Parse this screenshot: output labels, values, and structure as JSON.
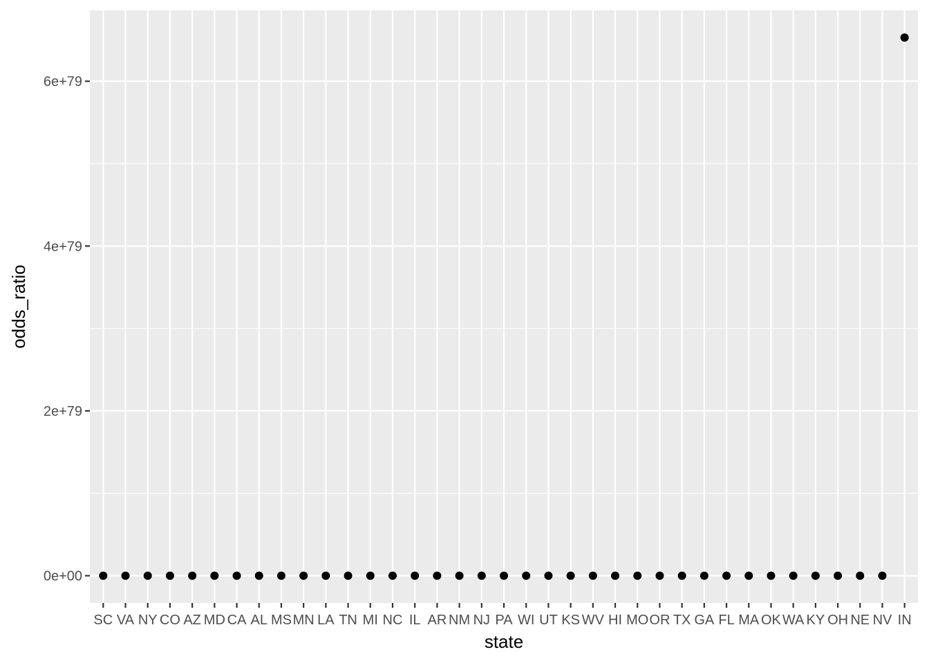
{
  "chart_data": {
    "type": "scatter",
    "xlabel": "state",
    "ylabel": "odds_ratio",
    "categories": [
      "SC",
      "VA",
      "NY",
      "CO",
      "AZ",
      "MD",
      "CA",
      "AL",
      "MS",
      "MN",
      "LA",
      "TN",
      "MI",
      "NC",
      "IL",
      "AR",
      "NM",
      "NJ",
      "PA",
      "WI",
      "UT",
      "KS",
      "WV",
      "HI",
      "MO",
      "OR",
      "TX",
      "GA",
      "FL",
      "MA",
      "OK",
      "WA",
      "KY",
      "OH",
      "NE",
      "NV",
      "IN"
    ],
    "values": [
      0,
      0,
      0,
      0,
      0,
      0,
      0,
      0,
      0,
      0,
      0,
      0,
      0,
      0,
      0,
      0,
      0,
      0,
      0,
      0,
      0,
      0,
      0,
      0,
      0,
      0,
      0,
      0,
      0,
      0,
      0,
      0,
      0,
      0,
      0,
      0,
      6.53e+79
    ],
    "y_ticks": [
      {
        "value": 0,
        "label": "0e+00"
      },
      {
        "value": 2e+79,
        "label": "2e+79"
      },
      {
        "value": 4e+79,
        "label": "4e+79"
      },
      {
        "value": 6e+79,
        "label": "6e+79"
      }
    ],
    "ylim": [
      -3.3e+78,
      6.86e+79
    ],
    "grid": true,
    "colors": {
      "panel": "#ebebeb",
      "grid_major": "#ffffff",
      "point": "#000000",
      "tick": "#333333"
    }
  }
}
